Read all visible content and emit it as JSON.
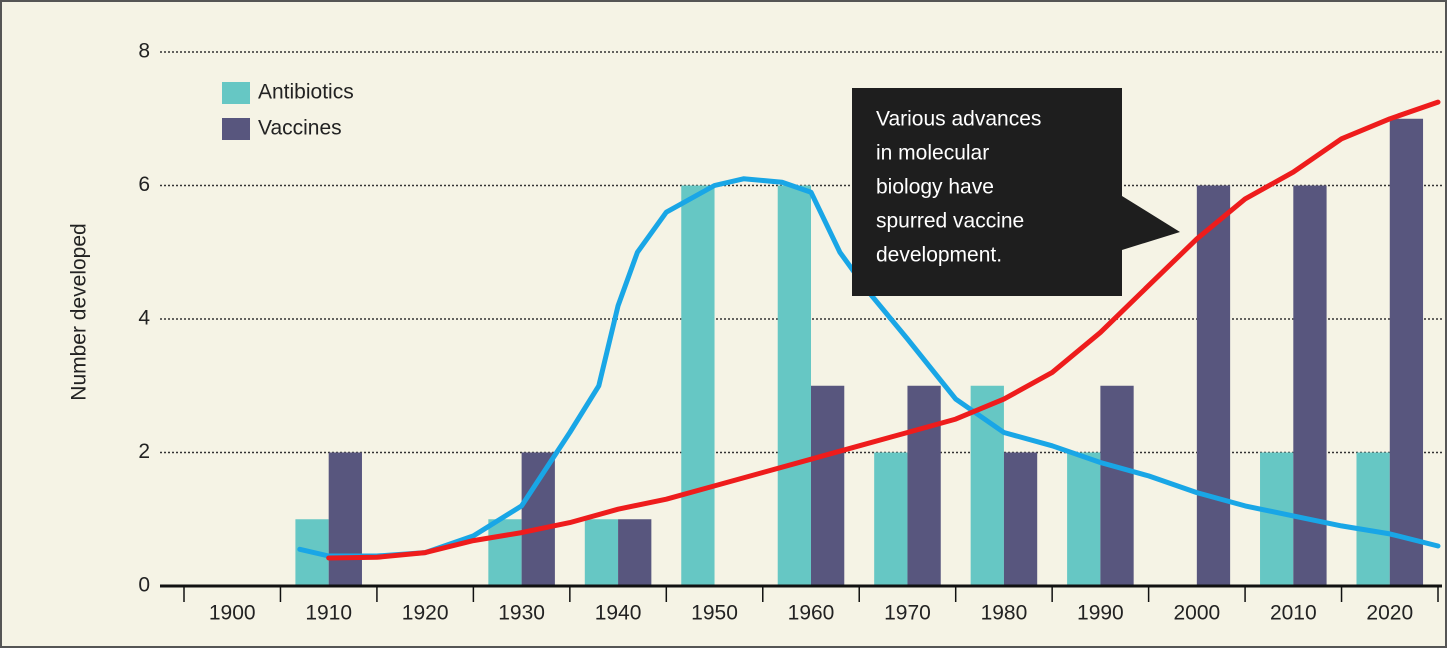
{
  "chart_data": {
    "type": "bar",
    "y_label": "Number developed",
    "x": [
      1900,
      1910,
      1920,
      1930,
      1940,
      1950,
      1960,
      1970,
      1980,
      1990,
      2000,
      2010,
      2020
    ],
    "xlim": [
      1895,
      2025
    ],
    "xticks": [
      1900,
      1910,
      1920,
      1930,
      1940,
      1950,
      1960,
      1970,
      1980,
      1990,
      2000,
      2010,
      2020
    ],
    "ylim": [
      0,
      8
    ],
    "yticks": [
      0,
      2,
      4,
      6,
      8
    ],
    "grid": true,
    "legend": "upper left",
    "series": [
      {
        "name": "Antibiotics",
        "color": "#66c7c4",
        "values": [
          0,
          1,
          0,
          1,
          1,
          6,
          6,
          2,
          3,
          2,
          0,
          2,
          2
        ]
      },
      {
        "name": "Vaccines",
        "color": "#58567e",
        "values": [
          0,
          2,
          0,
          2,
          1,
          0,
          3,
          3,
          2,
          3,
          6,
          6,
          7
        ]
      }
    ],
    "trend_lines": [
      {
        "color": "#19a6e6",
        "x": [
          1907,
          1910,
          1915,
          1920,
          1925,
          1930,
          1935,
          1938,
          1940,
          1942,
          1945,
          1950,
          1953,
          1957,
          1960,
          1963,
          1966,
          1970,
          1975,
          1980,
          1985,
          1990,
          1995,
          2000,
          2005,
          2010,
          2015,
          2020,
          2025
        ],
        "values": [
          0.55,
          0.45,
          0.45,
          0.5,
          0.75,
          1.2,
          2.3,
          3.0,
          4.2,
          5.0,
          5.6,
          6.0,
          6.1,
          6.05,
          5.9,
          5.0,
          4.4,
          3.7,
          2.8,
          2.3,
          2.1,
          1.85,
          1.65,
          1.4,
          1.2,
          1.05,
          0.9,
          0.78,
          0.6
        ]
      },
      {
        "color": "#ee1c1c",
        "x": [
          1910,
          1915,
          1920,
          1925,
          1930,
          1935,
          1940,
          1945,
          1950,
          1955,
          1960,
          1965,
          1970,
          1975,
          1980,
          1985,
          1990,
          1995,
          2000,
          2005,
          2010,
          2015,
          2020,
          2025
        ],
        "values": [
          0.42,
          0.43,
          0.5,
          0.68,
          0.8,
          0.95,
          1.15,
          1.3,
          1.5,
          1.7,
          1.9,
          2.1,
          2.3,
          2.5,
          2.8,
          3.2,
          3.8,
          4.5,
          5.2,
          5.8,
          6.2,
          6.7,
          7.0,
          7.25
        ]
      }
    ],
    "annotation": [
      "Various advances",
      "in molecular",
      "biology have",
      "spurred vaccine",
      "development."
    ]
  }
}
